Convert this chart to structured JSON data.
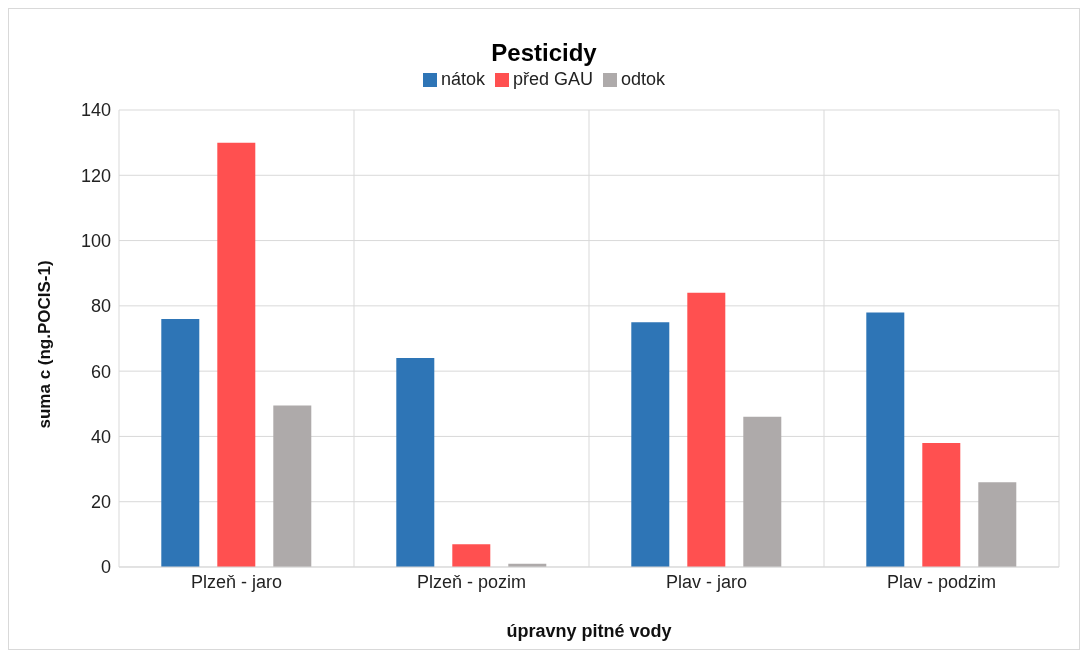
{
  "chart_data": {
    "type": "bar",
    "title": "Pesticidy",
    "xlabel": "úpravny pitné vody",
    "ylabel": "suma c (ng.POCIS-1)",
    "categories": [
      "Plzeň - jaro",
      "Plzeň - pozim",
      "Plav - jaro",
      "Plav - podzim"
    ],
    "series": [
      {
        "name": "nátok",
        "color": "#2e75b6",
        "values": [
          76,
          64,
          75,
          78
        ]
      },
      {
        "name": "před GAU",
        "color": "#ff5050",
        "values": [
          130,
          7,
          84,
          38
        ]
      },
      {
        "name": "odtok",
        "color": "#aeaaaa",
        "values": [
          49.5,
          1,
          46,
          26
        ]
      }
    ],
    "ylim": [
      0,
      140
    ],
    "yticks": [
      0,
      20,
      40,
      60,
      80,
      100,
      120,
      140
    ],
    "grid": true,
    "legend": "top"
  }
}
